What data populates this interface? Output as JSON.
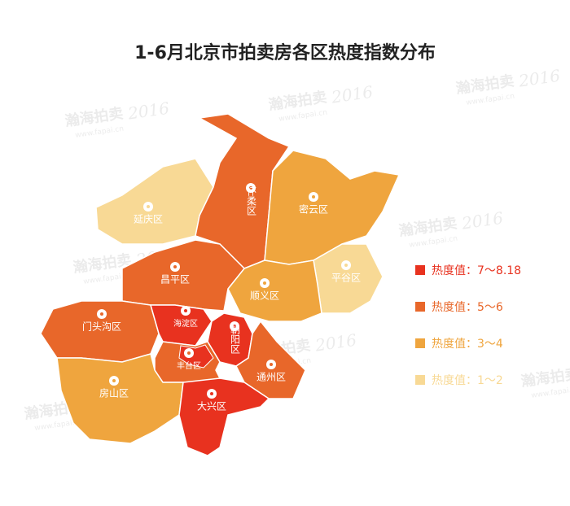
{
  "title": "1-6月北京市拍卖房各区热度指数分布",
  "watermark": {
    "brand": "瀚海拍卖",
    "year": "2016",
    "site": "www.fapai.cn"
  },
  "districts": [
    {
      "name": "延庆区",
      "color": "#f8d995"
    },
    {
      "name": "怀柔区",
      "color": "#e8672a"
    },
    {
      "name": "密云区",
      "color": "#efa53e"
    },
    {
      "name": "平谷区",
      "color": "#f8d995"
    },
    {
      "name": "顺义区",
      "color": "#efa53e"
    },
    {
      "name": "昌平区",
      "color": "#e8672a"
    },
    {
      "name": "门头沟区",
      "color": "#e8672a"
    },
    {
      "name": "海淀区",
      "color": "#e8321f"
    },
    {
      "name": "朝阳区",
      "color": "#e8321f"
    },
    {
      "name": "丰台区",
      "color": "#e8672a"
    },
    {
      "name": "通州区",
      "color": "#e8672a"
    },
    {
      "name": "房山区",
      "color": "#efa53e"
    },
    {
      "name": "大兴区",
      "color": "#e8321f"
    }
  ],
  "legend": [
    {
      "label": "热度值：7～8.18",
      "color": "#e8321f"
    },
    {
      "label": "热度值：5～6",
      "color": "#e8672a"
    },
    {
      "label": "热度值：3～4",
      "color": "#efa53e"
    },
    {
      "label": "热度值：1～2",
      "color": "#f8d995"
    }
  ]
}
